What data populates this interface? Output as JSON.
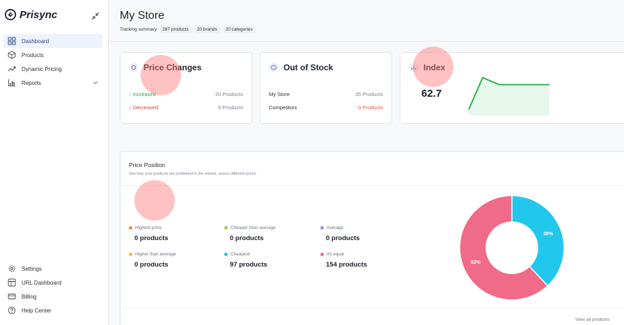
{
  "brand": {
    "name": "Prisync"
  },
  "sidebar": {
    "items": [
      {
        "label": "Dashboard",
        "icon": "grid-icon",
        "active": true
      },
      {
        "label": "Products",
        "icon": "box-icon"
      },
      {
        "label": "Dynamic Pricing",
        "icon": "trend-icon"
      },
      {
        "label": "Reports",
        "icon": "bar-chart-icon"
      }
    ],
    "bottom": [
      {
        "label": "Settings",
        "icon": "gear-icon"
      },
      {
        "label": "URL Dashboard",
        "icon": "url-dashboard-icon"
      },
      {
        "label": "Billing",
        "icon": "card-icon"
      },
      {
        "label": "Help Center",
        "icon": "help-icon"
      }
    ]
  },
  "header": {
    "title": "My Store",
    "summary_label": "Tracking summary",
    "chips": [
      "287 products",
      "20 brands",
      "20 categories"
    ]
  },
  "price_changes": {
    "title": "Price Changes",
    "increased_label": "Increased",
    "increased_value": "20 Products",
    "decreased_label": "Decreased",
    "decreased_value": "9 Products"
  },
  "out_of_stock": {
    "title": "Out of Stock",
    "my_store_label": "My Store",
    "my_store_value": "35 Products",
    "competitors_label": "Competitors",
    "competitors_value": "0 Products"
  },
  "index": {
    "title": "Index",
    "value": "62.7",
    "sparkline": [
      0.08,
      0.9,
      0.72,
      0.72,
      0.72,
      0.72
    ]
  },
  "price_position": {
    "title": "Price Position",
    "subtitle": "See how your products are positioned in the market, across different prices.",
    "categories": [
      {
        "label": "Highest price",
        "count": "0 products",
        "color": "#f28c38"
      },
      {
        "label": "Cheaper than average",
        "count": "0 products",
        "color": "#8fd14f"
      },
      {
        "label": "Average",
        "count": "0 products",
        "color": "#9b8cf2"
      },
      {
        "label": "Higher than average",
        "count": "0 products",
        "color": "#f2c12e"
      },
      {
        "label": "Cheapest",
        "count": "97 products",
        "color": "#22c7ec"
      },
      {
        "label": "All equal",
        "count": "154 products",
        "color": "#f06b87"
      }
    ],
    "view_all": "View all products"
  },
  "chart_data": {
    "type": "pie",
    "categories": [
      "Cheapest",
      "All equal"
    ],
    "values": [
      38,
      62
    ],
    "data_labels": [
      "38%",
      "62%"
    ],
    "colors": [
      "#22c7ec",
      "#f06b87"
    ]
  }
}
